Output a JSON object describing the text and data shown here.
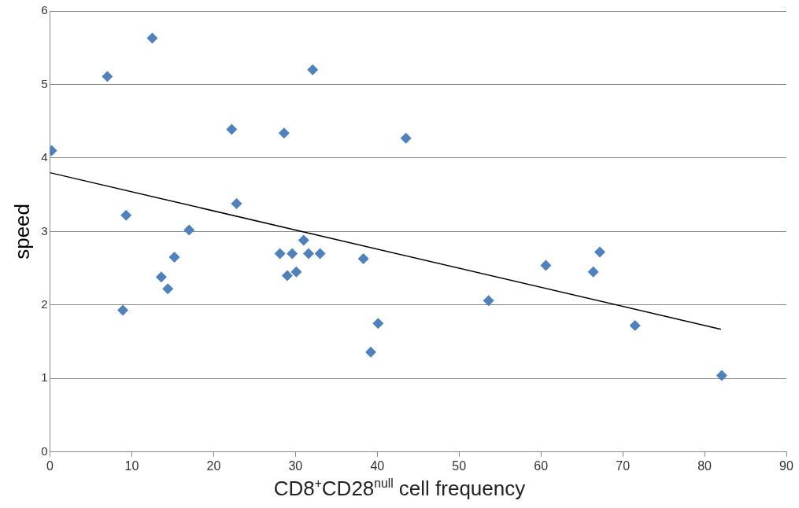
{
  "chart_data": {
    "type": "scatter",
    "xlabel": "CD8$^{+}$CD28$^{null}$ cell frequency",
    "ylabel": "speed",
    "xlim": [
      0,
      90
    ],
    "xticks": [
      0,
      10,
      20,
      30,
      40,
      50,
      60,
      70,
      80,
      90
    ],
    "ylim": [
      0,
      6
    ],
    "yticks": [
      0,
      1,
      2,
      3,
      4,
      5,
      6
    ],
    "grid": "y",
    "legend": false,
    "marker": "diamond",
    "series": [
      {
        "color": "#4f81bd",
        "x": [
          0.2,
          7.0,
          12.5,
          9.3,
          8.9,
          13.6,
          14.4,
          15.2,
          17.0,
          22.2,
          22.8,
          28.6,
          32.1,
          28.1,
          29.0,
          29.6,
          30.1,
          31.0,
          31.6,
          33.0,
          38.3,
          39.2,
          40.1,
          43.5,
          53.6,
          60.6,
          66.4,
          67.2,
          71.5,
          82.1
        ],
        "values": [
          4.1,
          5.11,
          5.63,
          3.22,
          1.93,
          2.38,
          2.22,
          2.65,
          3.02,
          4.39,
          3.38,
          4.34,
          5.2,
          2.7,
          2.4,
          2.7,
          2.45,
          2.88,
          2.7,
          2.7,
          2.63,
          1.36,
          1.75,
          4.27,
          2.06,
          2.54,
          2.45,
          2.72,
          1.72,
          1.04
        ]
      },
      {
        "type": "line",
        "color": "#000000",
        "marker": "none",
        "x": [
          0,
          82
        ],
        "values": [
          3.8,
          1.67
        ]
      }
    ]
  }
}
